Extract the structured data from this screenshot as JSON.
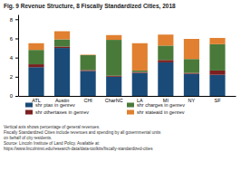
{
  "chart_data": {
    "type": "bar",
    "stacked": true,
    "title": "Fig. 9 Revenue Structure, 8 Fiscally Standardized Cities, 2018",
    "categories": [
      "ATL",
      "Austin",
      "CHI",
      "CharNC",
      "LA",
      "MI",
      "NY",
      "SF"
    ],
    "series": [
      {
        "name": "shr ptax in genrev",
        "color": "#1a4b78",
        "values": [
          3.0,
          5.0,
          2.6,
          2.0,
          2.4,
          3.5,
          2.3,
          2.2
        ]
      },
      {
        "name": "shr othertaxes in genrev",
        "color": "#7b2020",
        "values": [
          0.3,
          0.15,
          0.1,
          0.1,
          0.1,
          0.25,
          0.1,
          0.45
        ]
      },
      {
        "name": "shr charges in genrev",
        "color": "#4a7a3a",
        "values": [
          1.5,
          0.75,
          1.55,
          3.75,
          0.15,
          1.5,
          1.45,
          2.75
        ]
      },
      {
        "name": "shr stateaid in genrev",
        "color": "#e08030",
        "values": [
          0.7,
          0.85,
          0.05,
          0.5,
          2.85,
          1.15,
          2.1,
          0.65
        ]
      }
    ],
    "ylim": [
      0,
      8.5
    ],
    "yticks": [
      0,
      2,
      4,
      6,
      8
    ],
    "legend": "bottom",
    "annotations": [
      "Vertical axis shows percentage of general revenues.",
      "Fiscally Standardized Cities include revenues and spending by all governmental units",
      "on behalf of city residents.",
      "Source: Lincoln Institute of Land Policy. Available at:",
      "https://www.lincolninst.edu/research-data/data-toolkits/fiscally-standardized-cities"
    ]
  }
}
